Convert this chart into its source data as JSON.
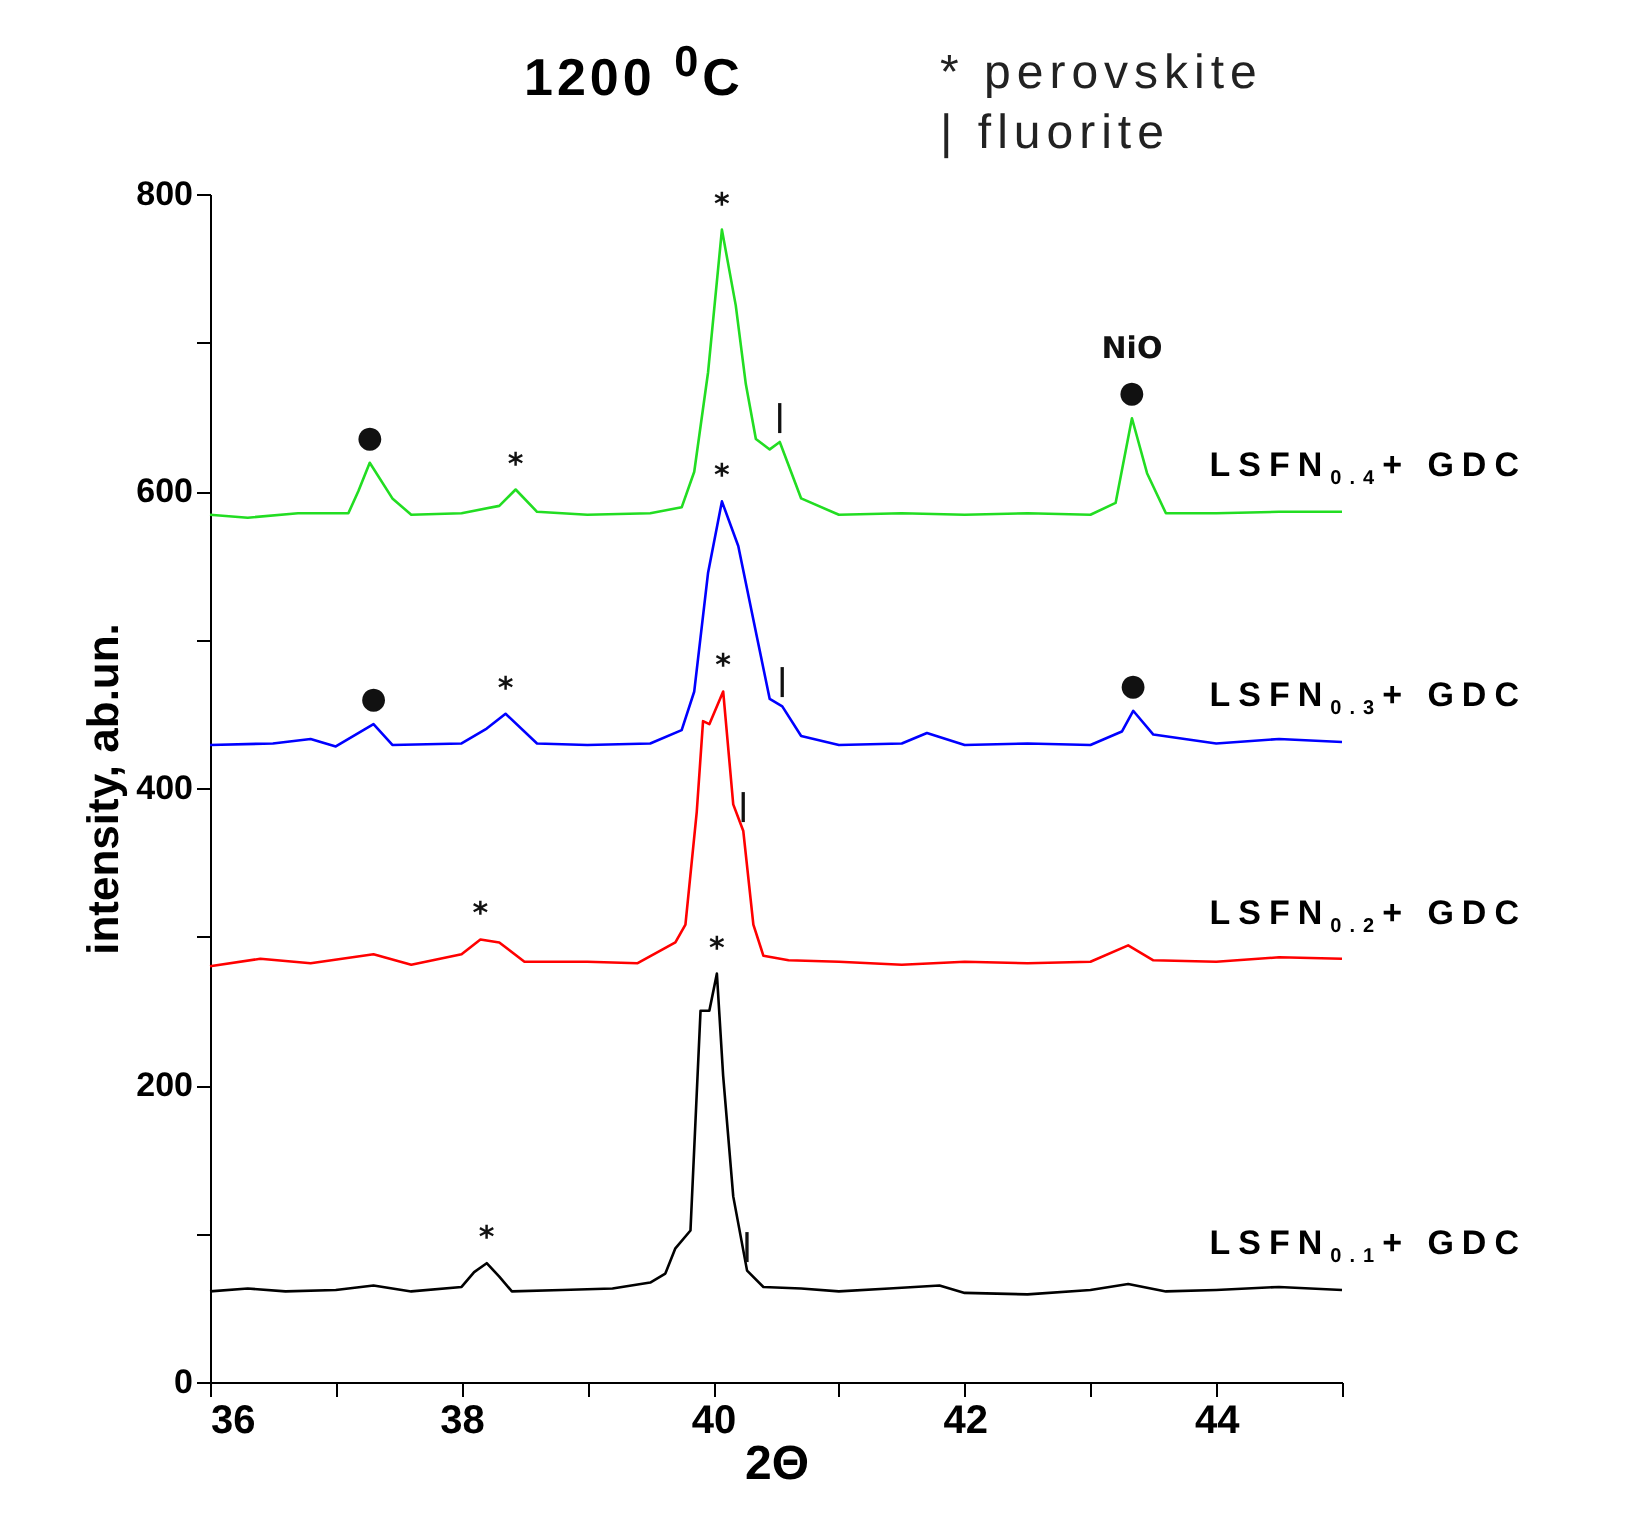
{
  "chart_data": {
    "type": "line",
    "title": "1200 $^{0}$C",
    "xlabel": "2Θ",
    "ylabel": "intensity, ab.un.",
    "xlim": [
      36,
      45
    ],
    "ylim": [
      0,
      800
    ],
    "xticks": [
      36,
      {
        "value": 37,
        "label": null
      },
      38,
      {
        "value": 39,
        "label": null
      },
      40,
      {
        "value": 41,
        "label": null
      },
      42,
      {
        "value": 43,
        "label": null
      },
      44,
      {
        "value": 45,
        "label": null
      }
    ],
    "yticks": [
      0,
      {
        "value": 100,
        "label": null
      },
      200,
      {
        "value": 300,
        "label": null
      },
      400,
      {
        "value": 500,
        "label": null
      },
      600,
      {
        "value": 700,
        "label": null
      },
      800
    ],
    "series": [
      {
        "name": "LSFN$_{0.1}$+ GDC",
        "color": "#000000",
        "x": [
          36,
          36.3,
          36.6,
          37,
          37.3,
          37.6,
          38.0,
          38.1,
          38.2,
          38.3,
          38.4,
          38.8,
          39.2,
          39.5,
          39.62,
          39.7,
          39.82,
          39.9,
          39.97,
          40.03,
          40.08,
          40.16,
          40.27,
          40.4,
          40.7,
          41,
          41.4,
          41.8,
          42,
          42.5,
          43,
          43.3,
          43.6,
          44,
          44.5,
          45
        ],
        "values": [
          61,
          63,
          61,
          62,
          65,
          61,
          64,
          74,
          80,
          71,
          61,
          62,
          63,
          67,
          73,
          90,
          102,
          250,
          250,
          275,
          206,
          125,
          75,
          64,
          63,
          61,
          63,
          65,
          60,
          59,
          62,
          66,
          61,
          62,
          64,
          62
        ]
      },
      {
        "name": "LSFN$_{0.2}$+ GDC",
        "color": "#ff0000",
        "x": [
          36,
          36.4,
          36.8,
          37.3,
          37.6,
          38.0,
          38.15,
          38.3,
          38.5,
          39,
          39.4,
          39.7,
          39.78,
          39.87,
          39.92,
          39.97,
          40.08,
          40.16,
          40.24,
          40.32,
          40.4,
          40.6,
          41,
          41.5,
          42,
          42.5,
          43,
          43.3,
          43.5,
          44,
          44.5,
          45
        ],
        "values": [
          280,
          285,
          282,
          288,
          281,
          288,
          298,
          296,
          283,
          283,
          282,
          296,
          308,
          384,
          445,
          443,
          465,
          389,
          371,
          308,
          287,
          284,
          283,
          281,
          283,
          282,
          283,
          294,
          284,
          283,
          286,
          285
        ]
      },
      {
        "name": "LSFN$_{0.3}$+ GDC",
        "color": "#0000ff",
        "x": [
          36,
          36.5,
          36.8,
          37,
          37.3,
          37.45,
          38,
          38.2,
          38.35,
          38.6,
          39,
          39.5,
          39.75,
          39.85,
          39.96,
          40.07,
          40.2,
          40.35,
          40.45,
          40.55,
          40.7,
          41,
          41.5,
          41.7,
          42,
          42.5,
          43,
          43.25,
          43.34,
          43.5,
          44,
          44.5,
          45
        ],
        "values": [
          429,
          430,
          433,
          428,
          443,
          429,
          430,
          440,
          450,
          430,
          429,
          430,
          439,
          465,
          545,
          593,
          563,
          501,
          460,
          455,
          435,
          429,
          430,
          437,
          429,
          430,
          429,
          438,
          452,
          436,
          430,
          433,
          431
        ]
      },
      {
        "name": "LSFN$_{0.4}$+ GDC",
        "color": "#22dd22",
        "x": [
          36,
          36.3,
          36.7,
          37.1,
          37.18,
          37.27,
          37.45,
          37.6,
          38,
          38.3,
          38.43,
          38.6,
          39,
          39.5,
          39.75,
          39.85,
          39.96,
          40.07,
          40.18,
          40.26,
          40.34,
          40.45,
          40.53,
          40.7,
          41,
          41.5,
          42,
          42.5,
          43,
          43.2,
          43.33,
          43.45,
          43.6,
          44,
          44.5,
          45
        ],
        "values": [
          584,
          582,
          585,
          585,
          600,
          619,
          595,
          584,
          585,
          590,
          601,
          586,
          584,
          585,
          589,
          613,
          680,
          776,
          725,
          672,
          635,
          628,
          633,
          595,
          584,
          585,
          584,
          585,
          584,
          592,
          649,
          612,
          585,
          585,
          586,
          586
        ]
      }
    ],
    "annotations": [
      "* perovskite",
      "| fluorite",
      {
        "text": "*",
        "x": 38.2,
        "y": 80
      },
      {
        "text": "*",
        "x": 40.03,
        "y": 275
      },
      {
        "text": "*",
        "x": 38.15,
        "y": 298
      },
      {
        "text": "*",
        "x": 40.08,
        "y": 465
      },
      {
        "text": "*",
        "x": 38.35,
        "y": 450
      },
      {
        "text": "*",
        "x": 40.07,
        "y": 593
      },
      {
        "text": "*",
        "x": 38.43,
        "y": 601
      },
      {
        "text": "*",
        "x": 40.07,
        "y": 776
      },
      {
        "text": "●",
        "x": 37.27,
        "y": 619
      },
      {
        "text": "●",
        "x": 37.3,
        "y": 443
      },
      {
        "text": "●",
        "x": 43.34,
        "y": 452
      },
      {
        "text": "●",
        "x": 43.33,
        "y": 649
      },
      {
        "text": "|",
        "x": 40.53,
        "y": 633
      },
      {
        "text": "|",
        "x": 40.55,
        "y": 455
      },
      {
        "text": "|",
        "x": 40.24,
        "y": 371
      },
      {
        "text": "|",
        "x": 40.27,
        "y": 75
      },
      {
        "text": "NiO",
        "x": 43.33,
        "y": 649
      }
    ]
  }
}
